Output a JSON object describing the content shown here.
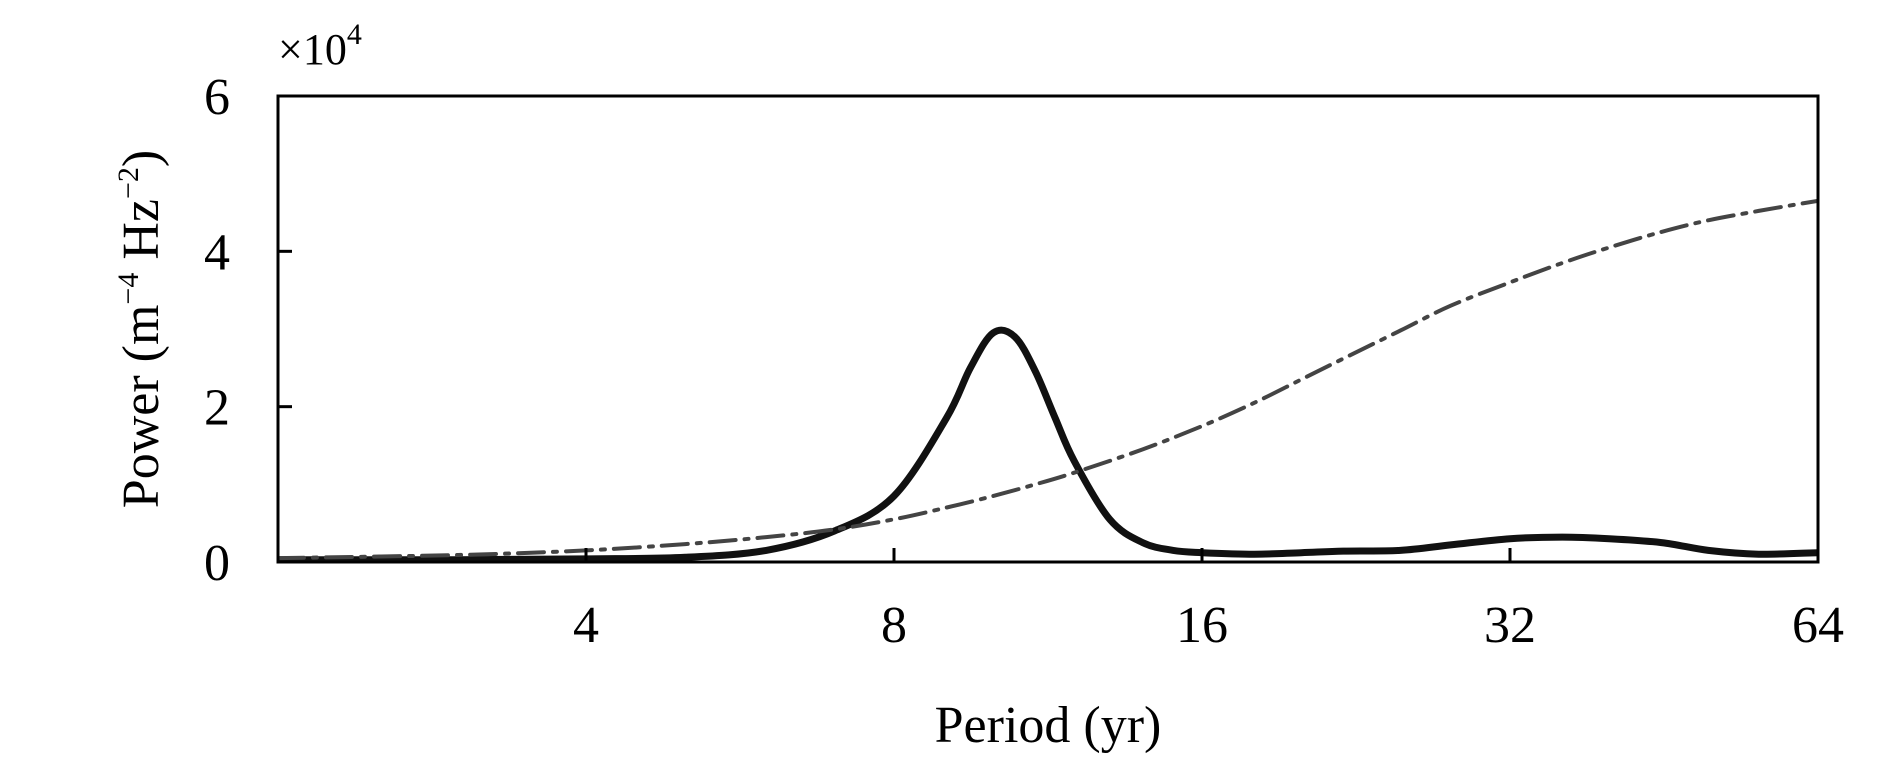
{
  "chart_data": {
    "type": "line",
    "title": "",
    "xlabel": "Period (yr)",
    "ylabel": {
      "base": "Power (m",
      "exp1": "−4",
      "mid": " Hz",
      "exp2": "−2",
      "end": ")"
    },
    "y_multiplier": {
      "prefix": "×10",
      "exponent": "4"
    },
    "x_scale": "log2",
    "xlim": [
      2,
      64
    ],
    "ylim": [
      0,
      6
    ],
    "x_ticks": [
      4,
      8,
      16,
      32,
      64
    ],
    "x_tick_labels": [
      "4",
      "8",
      "16",
      "32",
      "64"
    ],
    "y_ticks": [
      0,
      2,
      4,
      6
    ],
    "y_tick_labels": [
      "0",
      "2",
      "4",
      "6"
    ],
    "grid": false,
    "legend": "none",
    "series": [
      {
        "style": "solid",
        "color": "#111111",
        "x": [
          2,
          3,
          4,
          5,
          6,
          7,
          8,
          9,
          9.5,
          10,
          10.5,
          11,
          11.5,
          12,
          13,
          14,
          15,
          16,
          18,
          20,
          22,
          25,
          28,
          32,
          36,
          40,
          45,
          50,
          56,
          64
        ],
        "y": [
          0.03,
          0.03,
          0.04,
          0.06,
          0.15,
          0.4,
          0.85,
          1.85,
          2.5,
          2.95,
          2.9,
          2.45,
          1.85,
          1.3,
          0.55,
          0.25,
          0.15,
          0.12,
          0.1,
          0.12,
          0.14,
          0.15,
          0.22,
          0.3,
          0.32,
          0.3,
          0.25,
          0.15,
          0.1,
          0.12
        ]
      },
      {
        "style": "dash-dot",
        "color": "#444444",
        "x": [
          2,
          3,
          4,
          5,
          6,
          7,
          8,
          9,
          10,
          11,
          12,
          14,
          16,
          18,
          20,
          22,
          25,
          28,
          32,
          36,
          40,
          45,
          50,
          56,
          64
        ],
        "y": [
          0.05,
          0.09,
          0.15,
          0.23,
          0.32,
          0.42,
          0.55,
          0.7,
          0.85,
          1.0,
          1.15,
          1.45,
          1.75,
          2.05,
          2.35,
          2.62,
          2.98,
          3.3,
          3.6,
          3.85,
          4.05,
          4.25,
          4.4,
          4.52,
          4.65
        ]
      }
    ]
  }
}
